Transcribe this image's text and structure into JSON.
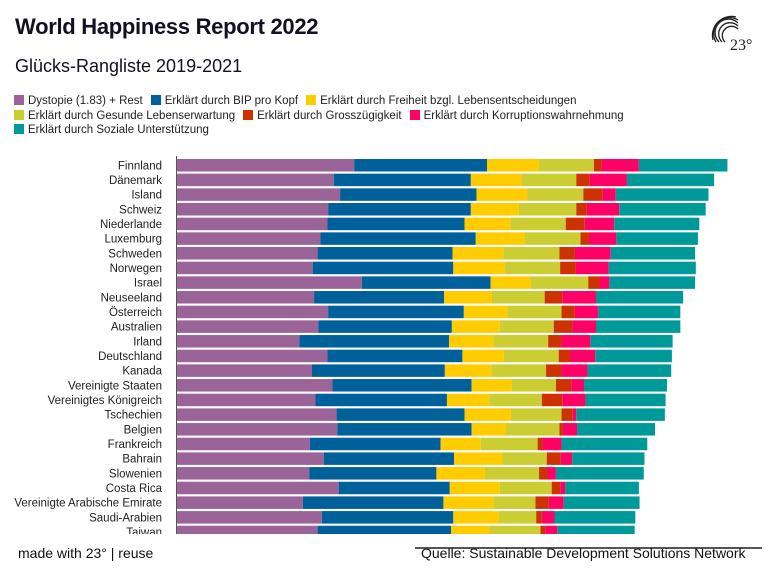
{
  "title": "World Happiness Report 2022",
  "subtitle": "Glücks-Rangliste 2019-2021",
  "logo_text": "23°",
  "footer": {
    "made_with": "made with 23° | reuse",
    "source": "Quelle: Sustainable Development Solutions Network"
  },
  "chart_data": {
    "type": "bar",
    "orientation": "horizontal",
    "stacked": true,
    "grid": false,
    "legend_placement": "top-left",
    "categories": [
      "Finnland",
      "Dänemark",
      "Island",
      "Schweiz",
      "Niederlande",
      "Luxemburg",
      "Schweden",
      "Norwegen",
      "Israel",
      "Neuseeland",
      "Österreich",
      "Australien",
      "Irland",
      "Deutschland",
      "Kanada",
      "Vereinigte Staaten",
      "Vereinigtes Königreich",
      "Tschechien",
      "Belgien",
      "Frankreich",
      "Bahrain",
      "Slowenien",
      "Costa Rica",
      "Vereinigte Arabische Emirate",
      "Saudi-Arabien",
      "Taiwan"
    ],
    "series": [
      {
        "name": "Dystopie (1.83) + Rest",
        "color": "#9b6499",
        "values": [
          2.52,
          2.23,
          2.32,
          2.15,
          2.14,
          2.04,
          2.0,
          1.93,
          2.63,
          1.95,
          2.15,
          2.01,
          1.74,
          2.14,
          1.92,
          2.21,
          1.97,
          2.27,
          2.28,
          1.89,
          2.09,
          1.88,
          2.3,
          1.79,
          2.06,
          2.0
        ]
      },
      {
        "name": "Erklärt durch BIP pro Kopf",
        "color": "#00609a",
        "values": [
          1.89,
          1.95,
          1.94,
          2.03,
          1.95,
          2.21,
          1.92,
          2.0,
          1.83,
          1.85,
          1.93,
          1.9,
          2.13,
          1.92,
          1.89,
          1.98,
          1.87,
          1.82,
          1.91,
          1.86,
          1.85,
          1.81,
          1.58,
          2.0,
          1.87,
          1.9
        ]
      },
      {
        "name": "Erklärt durch Freiheit bzgl. Lebensentscheidungen",
        "color": "#ffcc00",
        "values": [
          0.74,
          0.72,
          0.72,
          0.68,
          0.65,
          0.7,
          0.72,
          0.73,
          0.57,
          0.68,
          0.62,
          0.68,
          0.63,
          0.59,
          0.66,
          0.57,
          0.6,
          0.66,
          0.49,
          0.57,
          0.69,
          0.69,
          0.71,
          0.71,
          0.65,
          0.54
        ]
      },
      {
        "name": "Erklärt durch Gesunde Lebenserwartung",
        "color": "#cccc33",
        "values": [
          0.78,
          0.78,
          0.8,
          0.82,
          0.79,
          0.79,
          0.8,
          0.79,
          0.82,
          0.75,
          0.77,
          0.77,
          0.78,
          0.78,
          0.78,
          0.63,
          0.75,
          0.72,
          0.76,
          0.81,
          0.63,
          0.77,
          0.74,
          0.6,
          0.53,
          0.73
        ]
      },
      {
        "name": "Erklärt durch Grosszügigkeit",
        "color": "#cc3300",
        "values": [
          0.11,
          0.19,
          0.27,
          0.15,
          0.27,
          0.12,
          0.22,
          0.22,
          0.16,
          0.25,
          0.19,
          0.26,
          0.19,
          0.16,
          0.22,
          0.22,
          0.29,
          0.16,
          0.05,
          0.07,
          0.2,
          0.12,
          0.12,
          0.19,
          0.08,
          0.07
        ]
      },
      {
        "name": "Erklärt durch Korruptionswahrnehmung",
        "color": "#ff0066",
        "values": [
          0.53,
          0.53,
          0.19,
          0.46,
          0.42,
          0.39,
          0.51,
          0.47,
          0.14,
          0.48,
          0.33,
          0.34,
          0.41,
          0.36,
          0.37,
          0.18,
          0.33,
          0.05,
          0.2,
          0.27,
          0.16,
          0.12,
          0.07,
          0.21,
          0.18,
          0.17
        ]
      },
      {
        "name": "Erklärt durch Soziale Unterstützung",
        "color": "#009999",
        "values": [
          1.26,
          1.24,
          1.32,
          1.23,
          1.21,
          1.16,
          1.2,
          1.24,
          1.22,
          1.24,
          1.17,
          1.2,
          1.17,
          1.09,
          1.19,
          1.18,
          1.14,
          1.26,
          1.11,
          1.22,
          1.03,
          1.25,
          1.05,
          1.08,
          1.15,
          1.1
        ]
      }
    ]
  }
}
